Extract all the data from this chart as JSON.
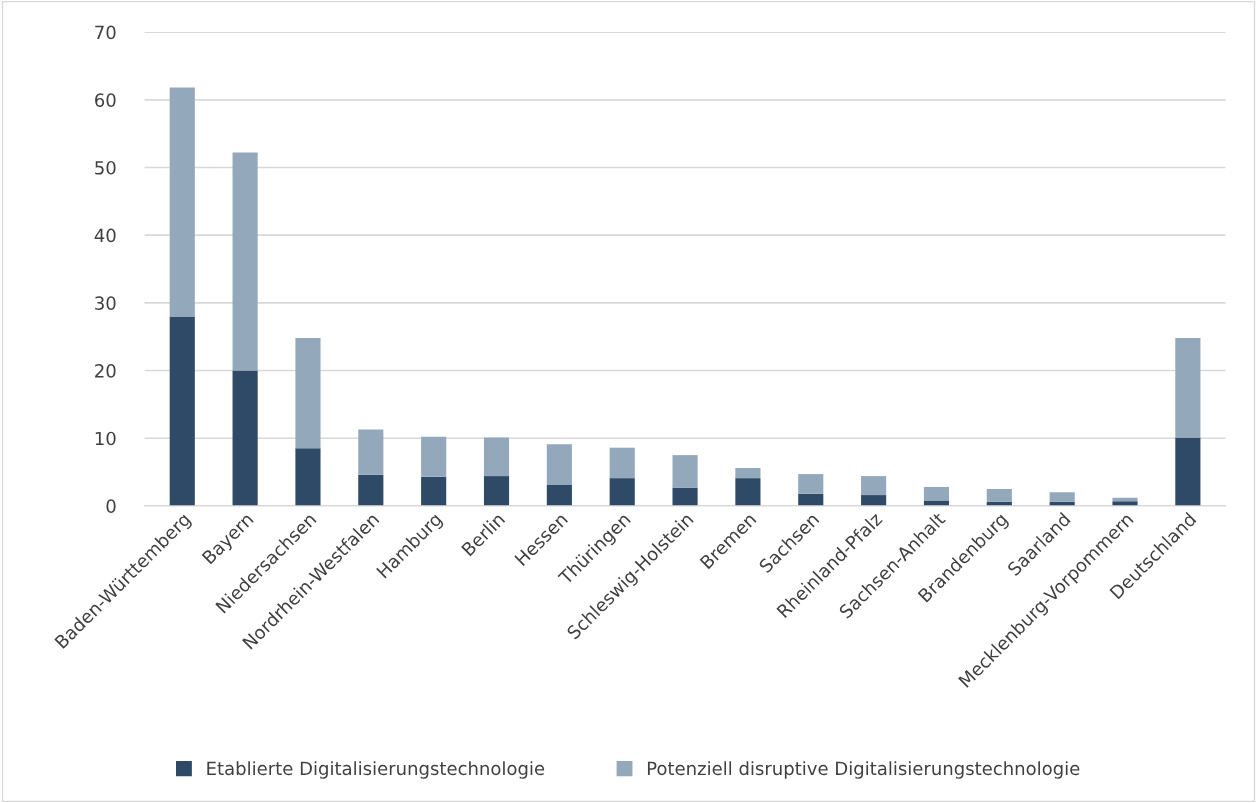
{
  "chart_data": {
    "type": "bar",
    "stacked": true,
    "categories": [
      "Baden-Württemberg",
      "Bayern",
      "Niedersachsen",
      "Nordrhein-Westfalen",
      "Hamburg",
      "Berlin",
      "Hessen",
      "Thüringen",
      "Schleswig-Holstein",
      "Bremen",
      "Sachsen",
      "Rheinland-Pfalz",
      "Sachsen-Anhalt",
      "Brandenburg",
      "Saarland",
      "Mecklenburg-Vorpommern",
      "Deutschland"
    ],
    "series": [
      {
        "name": "Etablierte Digitalisierungstechnologie",
        "color": "#2e4a66",
        "values": [
          28.0,
          20.0,
          8.5,
          4.6,
          4.3,
          4.4,
          3.1,
          4.1,
          2.7,
          4.1,
          1.8,
          1.6,
          0.8,
          0.6,
          0.6,
          0.7,
          10.1
        ]
      },
      {
        "name": "Potenziell disruptive Digitalisierungstechnologie",
        "color": "#94a8bb",
        "values": [
          33.8,
          32.2,
          16.3,
          6.7,
          5.9,
          5.7,
          6.0,
          4.5,
          4.8,
          1.5,
          2.9,
          2.8,
          2.0,
          1.9,
          1.4,
          0.5,
          14.7
        ]
      }
    ],
    "ylim": [
      0,
      70
    ],
    "yticks": [
      0,
      10,
      20,
      30,
      40,
      50,
      60,
      70
    ],
    "grid": "y",
    "legend": "bottom"
  }
}
